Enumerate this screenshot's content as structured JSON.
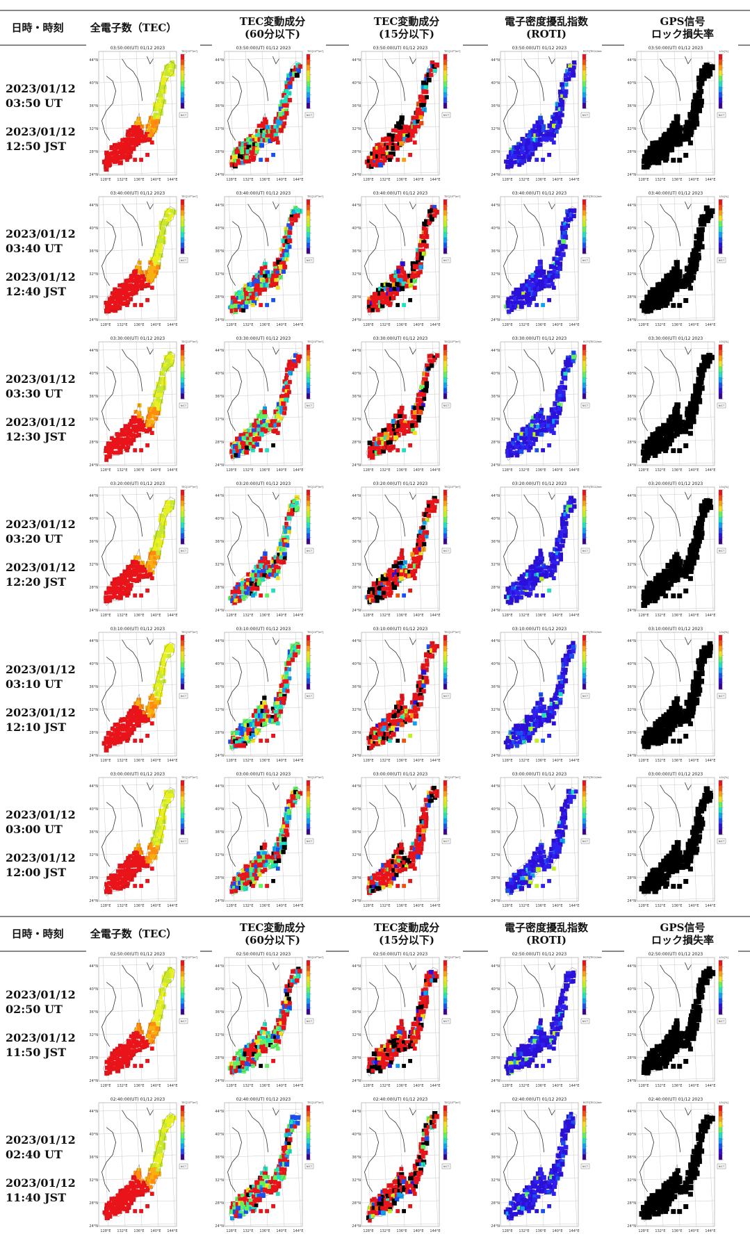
{
  "headers": [
    {
      "lines": [
        "日時・時刻"
      ]
    },
    {
      "lines": [
        "全電子数（TEC）"
      ]
    },
    {
      "lines": [
        "TEC変動成分",
        "(60分以下)"
      ]
    },
    {
      "lines": [
        "TEC変動成分",
        "(15分以下)"
      ]
    },
    {
      "lines": [
        "電子密度擾乱指数",
        "(ROTI)"
      ]
    },
    {
      "lines": [
        "GPS信号",
        "ロック損失率"
      ]
    }
  ],
  "rows": [
    {
      "date": "2023/01/12",
      "ut": "03:50 UT",
      "jst_date": "2023/01/12",
      "jst": "12:50 JST",
      "map_title": "03:50:00(UT) 01/12 2023"
    },
    {
      "date": "2023/01/12",
      "ut": "03:40 UT",
      "jst_date": "2023/01/12",
      "jst": "12:40 JST",
      "map_title": "03:40:00(UT) 01/12 2023"
    },
    {
      "date": "2023/01/12",
      "ut": "03:30 UT",
      "jst_date": "2023/01/12",
      "jst": "12:30 JST",
      "map_title": "03:30:00(UT) 01/12 2023"
    },
    {
      "date": "2023/01/12",
      "ut": "03:20 UT",
      "jst_date": "2023/01/12",
      "jst": "12:20 JST",
      "map_title": "03:20:00(UT) 01/12 2023"
    },
    {
      "date": "2023/01/12",
      "ut": "03:10 UT",
      "jst_date": "2023/01/12",
      "jst": "12:10 JST",
      "map_title": "03:10:00(UT) 01/12 2023"
    },
    {
      "date": "2023/01/12",
      "ut": "03:00 UT",
      "jst_date": "2023/01/12",
      "jst": "12:00 JST",
      "map_title": "03:00:00(UT) 01/12 2023"
    },
    {
      "date": "2023/01/12",
      "ut": "02:50 UT",
      "jst_date": "2023/01/12",
      "jst": "11:50 JST",
      "map_title": "02:50:00(UT) 01/12 2023"
    },
    {
      "date": "2023/01/12",
      "ut": "02:40 UT",
      "jst_date": "2023/01/12",
      "jst": "11:40 JST",
      "map_title": "02:40:00(UT) 01/12 2023"
    }
  ],
  "map": {
    "lon_ticks": [
      "128°E",
      "132°E",
      "136°E",
      "140°E",
      "144°E"
    ],
    "lat_ticks": [
      "44°N",
      "40°N",
      "36°N",
      "32°N",
      "28°N",
      "24°N"
    ],
    "colorbar_units": [
      "TEC[10¹⁶/m²]",
      "TEC[10¹⁶/m²]",
      "TEC[10¹⁶/m²]",
      "ROTI[TECU/min]",
      "LOL[%]"
    ],
    "logo": "NICT"
  },
  "colors": {
    "tec_low": "#e8f020",
    "tec_mid": "#ff8c10",
    "tec_high": "#e8141a",
    "roti_base": "#2a10d8",
    "lol_base": "#000000",
    "rule": "#888888"
  }
}
